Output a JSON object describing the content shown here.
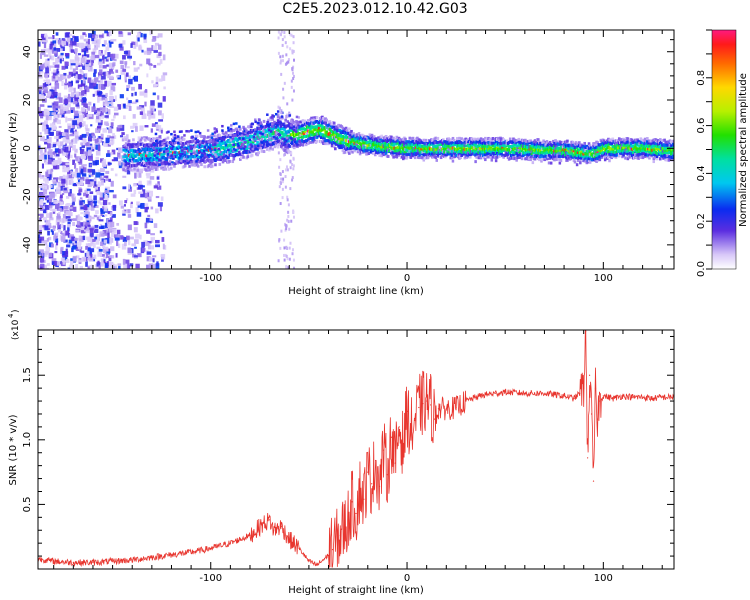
{
  "figure_title": "C2E5.2023.012.10.42.G03",
  "chart_data": [
    {
      "type": "heatmap",
      "title": "",
      "xlabel": "Height of straight line (km)",
      "ylabel": "Frequency (Hz)",
      "xlim": [
        -188,
        136
      ],
      "ylim": [
        -50,
        49
      ],
      "xticks": [
        "-100",
        "0",
        "100"
      ],
      "yticks": [
        "-40",
        "-20",
        "0",
        "20",
        "40"
      ],
      "colorbar": {
        "label": "Normalized spectral amplitude",
        "range": [
          0,
          1
        ],
        "ticks": [
          "0.0",
          "0.2",
          "0.4",
          "0.6",
          "0.8"
        ]
      },
      "ridge": {
        "x": [
          -140,
          -120,
          -100,
          -80,
          -66,
          -62,
          -55,
          -45,
          -35,
          -25,
          -15,
          0,
          20,
          50,
          80,
          90,
          95,
          100,
          120,
          136
        ],
        "y": [
          -3,
          -2,
          -1,
          3,
          7,
          5,
          6,
          8,
          4,
          2,
          1,
          0,
          0,
          0,
          -1,
          -2,
          -2,
          0,
          0,
          -1
        ]
      },
      "noise_region_x": [
        -188,
        -130
      ],
      "grid": false
    },
    {
      "type": "line",
      "title": "",
      "xlabel": "Height of straight line (km)",
      "ylabel": "SNR (10 * v/v)",
      "ylabel_scale": "(x10",
      "ylabel_scale_exp": "4",
      "ylabel_scale_close": ")",
      "xlim": [
        -188,
        136
      ],
      "ylim": [
        0,
        18500
      ],
      "xticks": [
        "-100",
        "0",
        "100"
      ],
      "yticks": [
        "0.5",
        "1.0",
        "1.5"
      ],
      "color": "#e8352e",
      "series": [
        {
          "x": [
            -188,
            -180,
            -170,
            -160,
            -150,
            -140,
            -130,
            -120,
            -110,
            -100,
            -90,
            -80,
            -74,
            -70,
            -68,
            -64,
            -60,
            -55,
            -50,
            -46,
            -42,
            -38,
            -34,
            -30,
            -28,
            -26,
            -24,
            -22,
            -20,
            -18,
            -16,
            -14,
            -12,
            -10,
            -8,
            -6,
            -4,
            -2,
            0,
            2,
            4,
            6,
            8,
            10,
            12,
            14,
            16,
            20,
            25,
            30,
            35,
            40,
            45,
            50,
            60,
            70,
            80,
            85,
            88,
            90,
            91,
            92,
            93,
            94,
            95,
            96,
            97,
            98,
            100,
            105,
            110,
            115,
            120,
            125,
            130,
            136
          ],
          "values": [
            800,
            600,
            500,
            500,
            600,
            700,
            900,
            1100,
            1300,
            1600,
            2000,
            2600,
            3400,
            3800,
            3000,
            3300,
            2300,
            1600,
            600,
            300,
            800,
            1500,
            2600,
            3800,
            5200,
            4300,
            6200,
            5400,
            7500,
            6600,
            8400,
            6400,
            9200,
            7300,
            10200,
            8200,
            11000,
            9600,
            12200,
            10600,
            11500,
            12500,
            12800,
            13000,
            12700,
            11600,
            12400,
            12400,
            12500,
            13000,
            13300,
            13500,
            13600,
            13700,
            13600,
            13600,
            13400,
            13200,
            13600,
            14000,
            18400,
            8600,
            15000,
            12000,
            6800,
            14000,
            11600,
            13000,
            13400,
            13200,
            13400,
            13300,
            13300,
            13200,
            13300,
            13300
          ]
        }
      ],
      "grid": false
    }
  ]
}
